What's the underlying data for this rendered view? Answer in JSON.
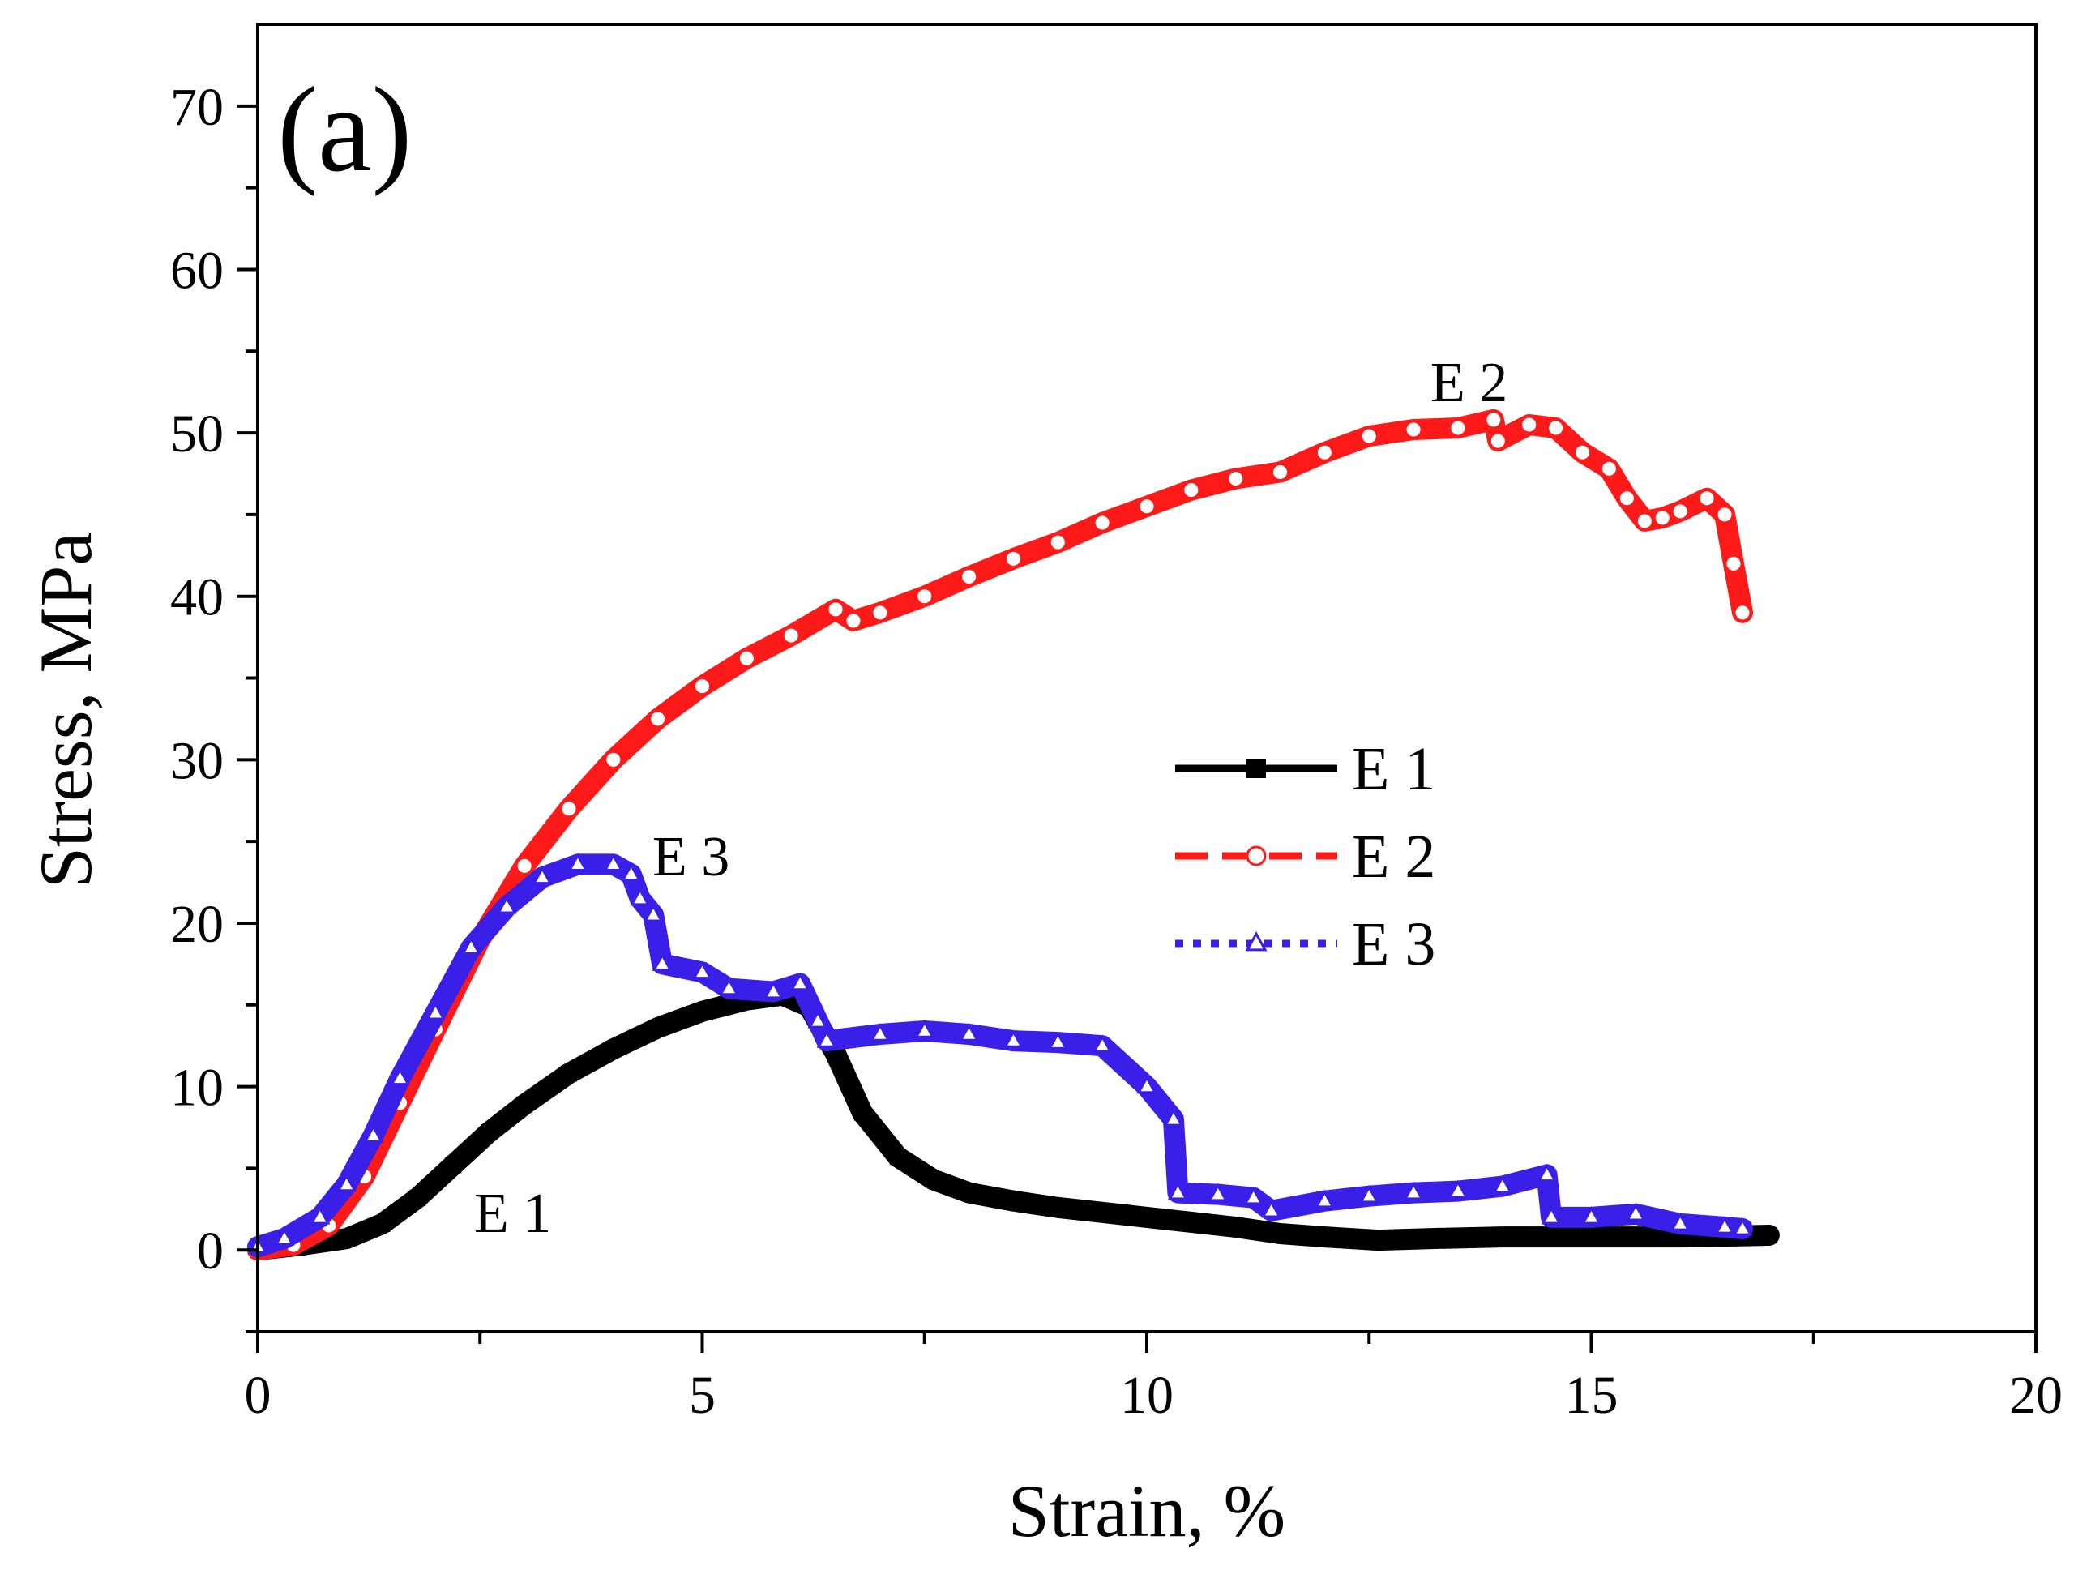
{
  "chart_data": {
    "type": "line",
    "panel_label": "(a)",
    "xlabel": "Strain, %",
    "ylabel": "Stress, MPa",
    "xlim": [
      0,
      20
    ],
    "ylim": [
      -5,
      75
    ],
    "x_ticks": [
      "0",
      "5",
      "10",
      "15",
      "20"
    ],
    "y_ticks": [
      "0",
      "10",
      "20",
      "30",
      "40",
      "50",
      "60",
      "70"
    ],
    "grid": false,
    "legend_position": "center-right",
    "series": [
      {
        "name": "E 1",
        "color": "#000000",
        "line_style": "solid",
        "marker": "square",
        "annotation": "E 1",
        "points": [
          [
            0,
            0
          ],
          [
            0.5,
            0.3
          ],
          [
            1.0,
            0.7
          ],
          [
            1.4,
            1.6
          ],
          [
            1.8,
            3.2
          ],
          [
            2.2,
            5.2
          ],
          [
            2.6,
            7.2
          ],
          [
            3.0,
            8.9
          ],
          [
            3.5,
            10.8
          ],
          [
            4.0,
            12.3
          ],
          [
            4.5,
            13.6
          ],
          [
            5.0,
            14.6
          ],
          [
            5.5,
            15.3
          ],
          [
            5.9,
            15.6
          ],
          [
            6.2,
            14.9
          ],
          [
            6.5,
            12.0
          ],
          [
            6.8,
            8.4
          ],
          [
            7.2,
            5.7
          ],
          [
            7.6,
            4.3
          ],
          [
            8.0,
            3.5
          ],
          [
            8.5,
            3.0
          ],
          [
            9.0,
            2.6
          ],
          [
            9.5,
            2.3
          ],
          [
            10.0,
            2.0
          ],
          [
            10.5,
            1.7
          ],
          [
            11.0,
            1.4
          ],
          [
            11.5,
            1.0
          ],
          [
            12.0,
            0.8
          ],
          [
            12.6,
            0.6
          ],
          [
            13.2,
            0.7
          ],
          [
            14.0,
            0.8
          ],
          [
            15.0,
            0.8
          ],
          [
            16.0,
            0.8
          ],
          [
            17.0,
            0.9
          ]
        ]
      },
      {
        "name": "E 2",
        "color": "#ff1a1a",
        "line_style": "dashed",
        "marker": "circle",
        "annotation": "E 2",
        "points": [
          [
            0,
            0
          ],
          [
            0.4,
            0.3
          ],
          [
            0.8,
            1.5
          ],
          [
            1.2,
            4.5
          ],
          [
            1.6,
            9.0
          ],
          [
            2.0,
            13.5
          ],
          [
            2.5,
            19.0
          ],
          [
            3.0,
            23.5
          ],
          [
            3.5,
            27.0
          ],
          [
            4.0,
            30.0
          ],
          [
            4.5,
            32.5
          ],
          [
            5.0,
            34.5
          ],
          [
            5.5,
            36.2
          ],
          [
            6.0,
            37.6
          ],
          [
            6.5,
            39.2
          ],
          [
            6.7,
            38.5
          ],
          [
            7.0,
            39.0
          ],
          [
            7.5,
            40.0
          ],
          [
            8.0,
            41.2
          ],
          [
            8.5,
            42.3
          ],
          [
            9.0,
            43.3
          ],
          [
            9.5,
            44.5
          ],
          [
            10.0,
            45.5
          ],
          [
            10.5,
            46.5
          ],
          [
            11.0,
            47.2
          ],
          [
            11.5,
            47.6
          ],
          [
            12.0,
            48.8
          ],
          [
            12.5,
            49.8
          ],
          [
            13.0,
            50.2
          ],
          [
            13.5,
            50.3
          ],
          [
            13.9,
            50.8
          ],
          [
            13.95,
            49.5
          ],
          [
            14.3,
            50.5
          ],
          [
            14.6,
            50.3
          ],
          [
            14.9,
            48.8
          ],
          [
            15.2,
            47.8
          ],
          [
            15.4,
            46.0
          ],
          [
            15.6,
            44.6
          ],
          [
            15.8,
            44.8
          ],
          [
            16.0,
            45.2
          ],
          [
            16.3,
            46.0
          ],
          [
            16.5,
            45.0
          ],
          [
            16.6,
            42.0
          ],
          [
            16.7,
            39.0
          ]
        ]
      },
      {
        "name": "E 3",
        "color": "#3a1fe8",
        "line_style": "dotted",
        "marker": "triangle",
        "annotation": "E 3",
        "points": [
          [
            0,
            0.2
          ],
          [
            0.3,
            0.7
          ],
          [
            0.7,
            2.0
          ],
          [
            1.0,
            4.0
          ],
          [
            1.3,
            7.0
          ],
          [
            1.6,
            10.5
          ],
          [
            2.0,
            14.5
          ],
          [
            2.4,
            18.5
          ],
          [
            2.8,
            21.0
          ],
          [
            3.2,
            22.8
          ],
          [
            3.6,
            23.6
          ],
          [
            4.0,
            23.6
          ],
          [
            4.2,
            23.0
          ],
          [
            4.3,
            21.5
          ],
          [
            4.45,
            20.5
          ],
          [
            4.55,
            17.5
          ],
          [
            5.0,
            17.0
          ],
          [
            5.3,
            16.0
          ],
          [
            5.8,
            15.8
          ],
          [
            6.1,
            16.3
          ],
          [
            6.3,
            14.0
          ],
          [
            6.4,
            12.8
          ],
          [
            7.0,
            13.2
          ],
          [
            7.5,
            13.4
          ],
          [
            8.0,
            13.2
          ],
          [
            8.5,
            12.8
          ],
          [
            9.0,
            12.7
          ],
          [
            9.5,
            12.5
          ],
          [
            10.0,
            10.0
          ],
          [
            10.3,
            8.0
          ],
          [
            10.35,
            3.5
          ],
          [
            10.8,
            3.4
          ],
          [
            11.2,
            3.2
          ],
          [
            11.4,
            2.4
          ],
          [
            12.0,
            3.0
          ],
          [
            12.5,
            3.3
          ],
          [
            13.0,
            3.5
          ],
          [
            13.5,
            3.6
          ],
          [
            14.0,
            3.9
          ],
          [
            14.5,
            4.6
          ],
          [
            14.55,
            2.0
          ],
          [
            15.0,
            2.0
          ],
          [
            15.5,
            2.2
          ],
          [
            16.0,
            1.6
          ],
          [
            16.5,
            1.4
          ],
          [
            16.7,
            1.3
          ]
        ]
      }
    ]
  }
}
